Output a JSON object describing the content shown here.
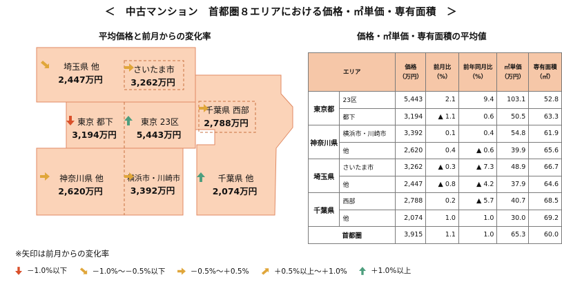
{
  "title": "＜　中古マンション　首都圏８エリアにおける価格・㎡単価・専有面積　＞",
  "map": {
    "subtitle": "平均価格と前月からの変化率",
    "regions": [
      {
        "id": "saitama-other",
        "name": "埼玉県 他",
        "price": "2,447万円",
        "trend": "up-slight"
      },
      {
        "id": "saitama-city",
        "name": "さいたま市",
        "price": "3,262万円",
        "trend": "flat"
      },
      {
        "id": "tokyo-toka",
        "name": "東京 都下",
        "price": "3,194万円",
        "trend": "down"
      },
      {
        "id": "tokyo-23",
        "name": "東京 23区",
        "price": "5,443万円",
        "trend": "up"
      },
      {
        "id": "chiba-west",
        "name": "千葉県 西部",
        "price": "2,788万円",
        "trend": "flat"
      },
      {
        "id": "kanagawa-other",
        "name": "神奈川県 他",
        "price": "2,620万円",
        "trend": "flat"
      },
      {
        "id": "yokohama",
        "name": "横浜市・川崎市",
        "price": "3,392万円",
        "trend": "flat"
      },
      {
        "id": "chiba-other",
        "name": "千葉県 他",
        "price": "2,074万円",
        "trend": "up"
      }
    ],
    "colors": {
      "fill": "#fbd3b8",
      "border": "#e08a63",
      "dashed": "#c8703f"
    }
  },
  "table": {
    "subtitle": "価格・㎡単価・専有面積の平均値",
    "headers": {
      "area": "エリア",
      "price": [
        "価格",
        "（万円）"
      ],
      "mom": [
        "前月比",
        "（%）"
      ],
      "yoy": [
        "前年同月比",
        "（%）"
      ],
      "unit": [
        "㎡単価",
        "（万円）"
      ],
      "size": [
        "専有面積",
        "（㎡）"
      ]
    },
    "groups": [
      {
        "pref": "東京都",
        "rows": [
          {
            "area": "23区",
            "price": "5,443",
            "mom": "2.1",
            "yoy": "9.4",
            "unit": "103.1",
            "size": "52.8"
          },
          {
            "area": "都下",
            "price": "3,194",
            "mom": "▲ 1.1",
            "yoy": "0.6",
            "unit": "50.5",
            "size": "63.3"
          }
        ]
      },
      {
        "pref": "神奈川県",
        "rows": [
          {
            "area": "横浜市・川崎市",
            "price": "3,392",
            "mom": "0.1",
            "yoy": "0.4",
            "unit": "54.8",
            "size": "61.9"
          },
          {
            "area": "他",
            "price": "2,620",
            "mom": "0.4",
            "yoy": "▲ 0.6",
            "unit": "39.9",
            "size": "65.6"
          }
        ]
      },
      {
        "pref": "埼玉県",
        "rows": [
          {
            "area": "さいたま市",
            "price": "3,262",
            "mom": "▲ 0.3",
            "yoy": "▲ 7.3",
            "unit": "48.9",
            "size": "66.7"
          },
          {
            "area": "他",
            "price": "2,447",
            "mom": "▲ 0.8",
            "yoy": "▲ 4.2",
            "unit": "37.9",
            "size": "64.6"
          }
        ]
      },
      {
        "pref": "千葉県",
        "rows": [
          {
            "area": "西部",
            "price": "2,788",
            "mom": "0.2",
            "yoy": "▲ 5.7",
            "unit": "40.7",
            "size": "68.5"
          },
          {
            "area": "他",
            "price": "2,074",
            "mom": "1.0",
            "yoy": "1.0",
            "unit": "30.0",
            "size": "69.2"
          }
        ]
      }
    ],
    "total": {
      "area": "首都圏",
      "price": "3,915",
      "mom": "1.1",
      "yoy": "1.0",
      "unit": "65.3",
      "size": "60.0"
    }
  },
  "note": "※矢印は前月からの変化率",
  "legend": [
    {
      "trend": "down",
      "label": "－1.0%以下"
    },
    {
      "trend": "up-slight",
      "label": "－1.0%～－0.5%以下"
    },
    {
      "trend": "flat",
      "label": "－0.5%～＋0.5%"
    },
    {
      "trend": "down-slight",
      "label": "＋0.5%以上～＋1.0%"
    },
    {
      "trend": "up",
      "label": "＋1.0%以上"
    }
  ]
}
